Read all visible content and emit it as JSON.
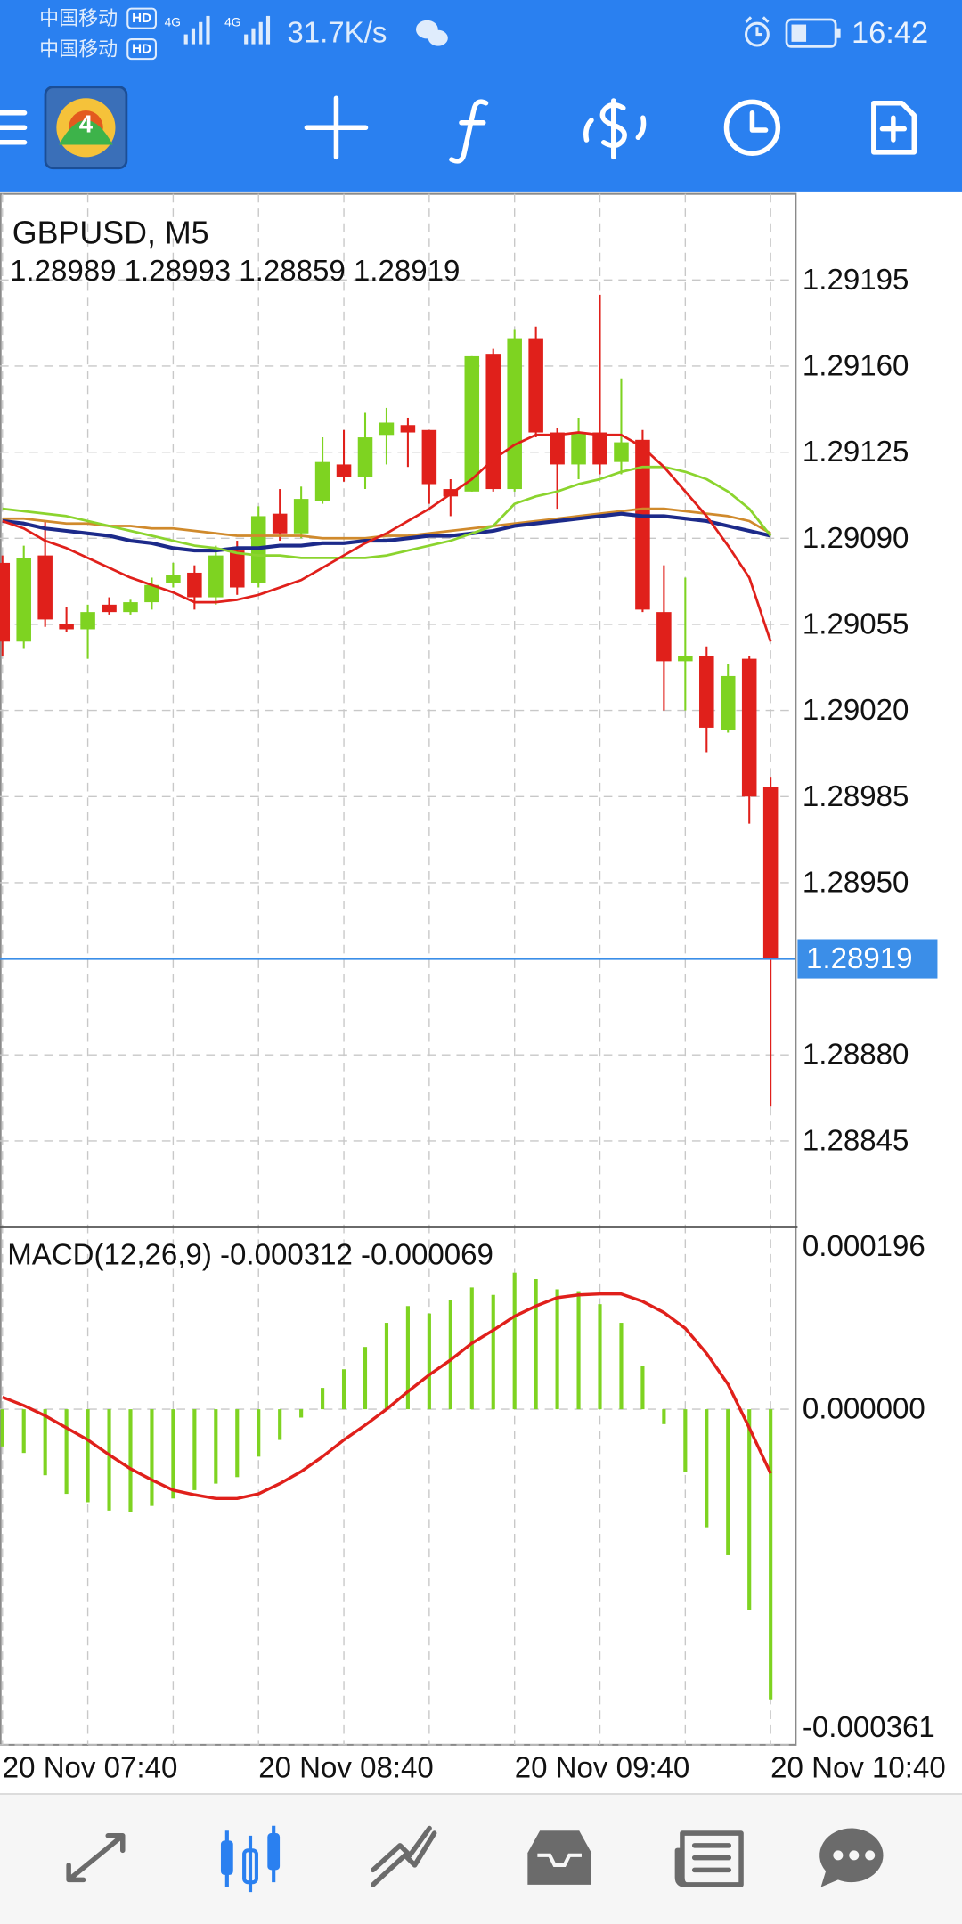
{
  "status_bar": {
    "carrier_1": "中国移动",
    "carrier_1_badge": "HD",
    "carrier_2": "中国移动",
    "carrier_2_badge": "HD",
    "network_1": "4G",
    "network_2": "4G",
    "network_speed": "31.7K/s",
    "time": "16:42"
  },
  "toolbar": {
    "app_logo_text": "4"
  },
  "chart_data": [
    {
      "type": "candlestick",
      "title": "GBPUSD, M5",
      "subtitle": "1.28989 1.28993 1.28859 1.28919",
      "categories": [
        "20 Nov 07:40",
        null,
        null,
        null,
        null,
        null,
        null,
        null,
        null,
        null,
        null,
        null,
        "20 Nov 08:40",
        null,
        null,
        null,
        null,
        null,
        null,
        null,
        null,
        null,
        null,
        null,
        "20 Nov 09:40",
        null,
        null,
        null,
        null,
        null,
        null,
        null,
        null,
        null,
        null,
        null,
        "20 Nov 10:40"
      ],
      "open": [
        1.2908,
        1.29048,
        1.29083,
        1.29055,
        1.29053,
        1.29063,
        1.2906,
        1.29064,
        1.29072,
        1.29076,
        1.29066,
        1.29085,
        1.29072,
        1.291,
        1.29092,
        1.29105,
        1.2912,
        1.29115,
        1.29132,
        1.29136,
        1.29134,
        1.2911,
        1.29109,
        1.29165,
        1.2911,
        1.29171,
        1.29133,
        1.2912,
        1.29133,
        1.29121,
        1.2913,
        1.2906,
        1.2904,
        1.29042,
        1.29012,
        1.29041,
        1.28989
      ],
      "high": [
        1.29083,
        1.29087,
        1.29097,
        1.29062,
        1.29063,
        1.29066,
        1.29065,
        1.29074,
        1.2908,
        1.29079,
        1.29087,
        1.29089,
        1.29103,
        1.2911,
        1.29111,
        1.29131,
        1.29134,
        1.29141,
        1.29143,
        1.29139,
        1.29134,
        1.29114,
        1.29164,
        1.29167,
        1.29175,
        1.29176,
        1.29135,
        1.29139,
        1.29189,
        1.29155,
        1.29134,
        1.29079,
        1.29074,
        1.29046,
        1.29039,
        1.29042,
        1.28993
      ],
      "low": [
        1.29042,
        1.29045,
        1.29054,
        1.29052,
        1.29041,
        1.29059,
        1.29059,
        1.29061,
        1.2907,
        1.29061,
        1.29063,
        1.29067,
        1.2907,
        1.29089,
        1.2909,
        1.29104,
        1.29113,
        1.2911,
        1.2912,
        1.29119,
        1.29104,
        1.29099,
        1.29109,
        1.29109,
        1.29109,
        1.29131,
        1.29102,
        1.29114,
        1.29116,
        1.29116,
        1.2906,
        1.2902,
        1.2902,
        1.29003,
        1.29011,
        1.28974,
        1.28859
      ],
      "close": [
        1.29048,
        1.29082,
        1.29057,
        1.29053,
        1.2906,
        1.2906,
        1.29064,
        1.29071,
        1.29075,
        1.29066,
        1.29083,
        1.2907,
        1.29099,
        1.29092,
        1.29106,
        1.29121,
        1.29115,
        1.29131,
        1.29137,
        1.29133,
        1.29112,
        1.29107,
        1.29164,
        1.2911,
        1.29171,
        1.29133,
        1.2912,
        1.29133,
        1.2912,
        1.29129,
        1.29061,
        1.2904,
        1.29042,
        1.29013,
        1.29034,
        1.28985,
        1.28919
      ],
      "up_color": "#7ed321",
      "down_color": "#e0201b",
      "series": [
        {
          "color": "#d08a2c",
          "values": [
            1.29098,
            1.29098,
            1.29097,
            1.29096,
            1.29096,
            1.29095,
            1.29095,
            1.29094,
            1.29094,
            1.29093,
            1.29092,
            1.29091,
            1.29091,
            1.29091,
            1.29091,
            1.2909,
            1.2909,
            1.2909,
            1.29091,
            1.29091,
            1.29092,
            1.29093,
            1.29094,
            1.29095,
            1.29096,
            1.29097,
            1.29098,
            1.29099,
            1.291,
            1.29101,
            1.29102,
            1.29102,
            1.29101,
            1.291,
            1.29099,
            1.29097,
            1.29092
          ]
        },
        {
          "color": "#1c2a8a",
          "values": [
            1.29097,
            1.29096,
            1.29094,
            1.29093,
            1.29092,
            1.29091,
            1.29089,
            1.29088,
            1.29086,
            1.29085,
            1.29085,
            1.29086,
            1.29086,
            1.29087,
            1.29087,
            1.29088,
            1.29088,
            1.29089,
            1.29089,
            1.2909,
            1.29091,
            1.29091,
            1.29092,
            1.29093,
            1.29095,
            1.29096,
            1.29097,
            1.29098,
            1.29099,
            1.291,
            1.29099,
            1.29099,
            1.29098,
            1.29097,
            1.29095,
            1.29093,
            1.29091
          ]
        },
        {
          "color": "#8bd42e",
          "values": [
            1.29102,
            1.29101,
            1.291,
            1.29099,
            1.29097,
            1.29095,
            1.29093,
            1.29091,
            1.29089,
            1.29087,
            1.29086,
            1.29084,
            1.29083,
            1.29083,
            1.29082,
            1.29082,
            1.29082,
            1.29082,
            1.29083,
            1.29085,
            1.29087,
            1.29089,
            1.29092,
            1.29095,
            1.29104,
            1.29107,
            1.29109,
            1.29112,
            1.29114,
            1.29117,
            1.29119,
            1.29119,
            1.29117,
            1.29114,
            1.29109,
            1.29102,
            1.29091
          ]
        },
        {
          "color": "#e0201b",
          "values": [
            1.29097,
            1.29094,
            1.29089,
            1.29086,
            1.29082,
            1.29078,
            1.29074,
            1.29071,
            1.29068,
            1.29064,
            1.29064,
            1.29065,
            1.29067,
            1.2907,
            1.29073,
            1.29078,
            1.29083,
            1.29088,
            1.29092,
            1.29097,
            1.29102,
            1.29108,
            1.29114,
            1.29122,
            1.29128,
            1.29132,
            1.29132,
            1.29133,
            1.29132,
            1.29132,
            1.29127,
            1.29119,
            1.29109,
            1.29099,
            1.29087,
            1.29074,
            1.29048
          ]
        }
      ],
      "current_price": 1.28919,
      "current_price_color": "#3b8ee8",
      "ylim": [
        1.2881,
        1.2923
      ],
      "yticks": [
        1.29195,
        {
          "value": 1.2916,
          "label": "1.29160"
        },
        1.29125,
        {
          "value": 1.2909,
          "label": "1.29090"
        },
        1.29055,
        {
          "value": 1.2902,
          "label": "1.29020"
        },
        1.28985,
        {
          "value": 1.2895,
          "label": "1.28950"
        },
        {
          "value": 1.2888,
          "label": "1.28880"
        },
        1.28845
      ],
      "grid": true
    },
    {
      "type": "macd",
      "title": "MACD(12,26,9) -0.000312 -0.000069",
      "series": [
        {
          "style": "bar",
          "color": "#7ed321",
          "values": [
            -4e-05,
            -4.7e-05,
            -7.1e-05,
            -9.1e-05,
            -0.0001,
            -0.000109,
            -0.000111,
            -0.000104,
            -9.6e-05,
            -8.7e-05,
            -8e-05,
            -7.3e-05,
            -5.1e-05,
            -3.3e-05,
            -9e-06,
            2.3e-05,
            4.3e-05,
            6.7e-05,
            9.3e-05,
            0.000111,
            0.000103,
            0.000117,
            0.000131,
            0.000123,
            0.000147,
            0.00014,
            0.000129,
            0.000127,
            0.000113,
            9.3e-05,
            4.7e-05,
            -1.6e-05,
            -6.7e-05,
            -0.000127,
            -0.000157,
            -0.000216,
            -0.000312
          ]
        },
        {
          "style": "line",
          "color": "#e0201b",
          "values": [
            1.3e-05,
            4e-06,
            -7e-06,
            -2e-05,
            -3.3e-05,
            -4.9e-05,
            -6.4e-05,
            -7.6e-05,
            -8.7e-05,
            -9.2e-05,
            -9.6e-05,
            -9.6e-05,
            -9.1e-05,
            -8e-05,
            -6.7e-05,
            -5.1e-05,
            -3.3e-05,
            -1.7e-05,
            0,
            1.9e-05,
            3.7e-05,
            5.3e-05,
            7.1e-05,
            8.5e-05,
            0.0001,
            0.000111,
            0.00012,
            0.000123,
            0.000124,
            0.000124,
            0.000116,
            0.000104,
            8.7e-05,
            6e-05,
            2.7e-05,
            -2e-05,
            -6.9e-05
          ]
        }
      ],
      "ylim": [
        -0.000361,
        0.000196
      ],
      "yticks": [
        0.000196,
        {
          "value": 0,
          "label": "0.000000"
        },
        -0.000361
      ],
      "grid": true
    }
  ]
}
